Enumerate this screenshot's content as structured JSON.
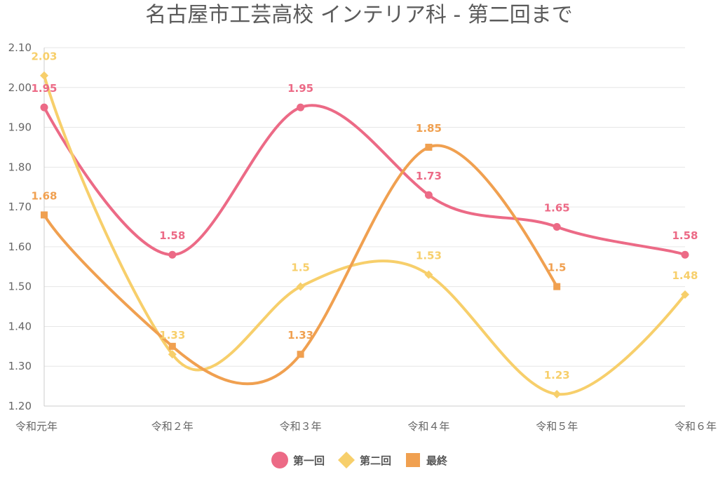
{
  "chart_data": {
    "type": "line",
    "title": "名古屋市工芸高校 インテリア科 - 第二回まで",
    "categories": [
      "令和元年",
      "令和２年",
      "令和３年",
      "令和４年",
      "令和５年",
      "令和６年"
    ],
    "ylim": [
      1.2,
      2.1
    ],
    "yticks": [
      "1.20",
      "1.30",
      "1.40",
      "1.50",
      "1.60",
      "1.70",
      "1.80",
      "1.90",
      "2.00",
      "2.10"
    ],
    "grid": true,
    "smooth": true,
    "legend_position": "bottom",
    "series": [
      {
        "name": "第一回",
        "color": "#ec6a86",
        "marker": "circle",
        "values": [
          1.95,
          1.58,
          1.95,
          1.73,
          1.65,
          1.58
        ],
        "labels": [
          "1.95",
          "1.58",
          "1.95",
          "1.73",
          "1.65",
          "1.58"
        ]
      },
      {
        "name": "第二回",
        "color": "#f7cf6b",
        "marker": "diamond",
        "values": [
          2.03,
          1.33,
          1.5,
          1.53,
          1.23,
          1.48
        ],
        "labels": [
          "2.03",
          "1.33",
          "1.5",
          "1.53",
          "1.23",
          "1.48"
        ]
      },
      {
        "name": "最終",
        "color": "#f0a050",
        "marker": "square",
        "values": [
          1.68,
          1.35,
          1.33,
          1.85,
          1.5,
          null
        ],
        "labels": [
          "1.68",
          "",
          "1.33",
          "1.85",
          "1.5",
          ""
        ]
      }
    ]
  }
}
